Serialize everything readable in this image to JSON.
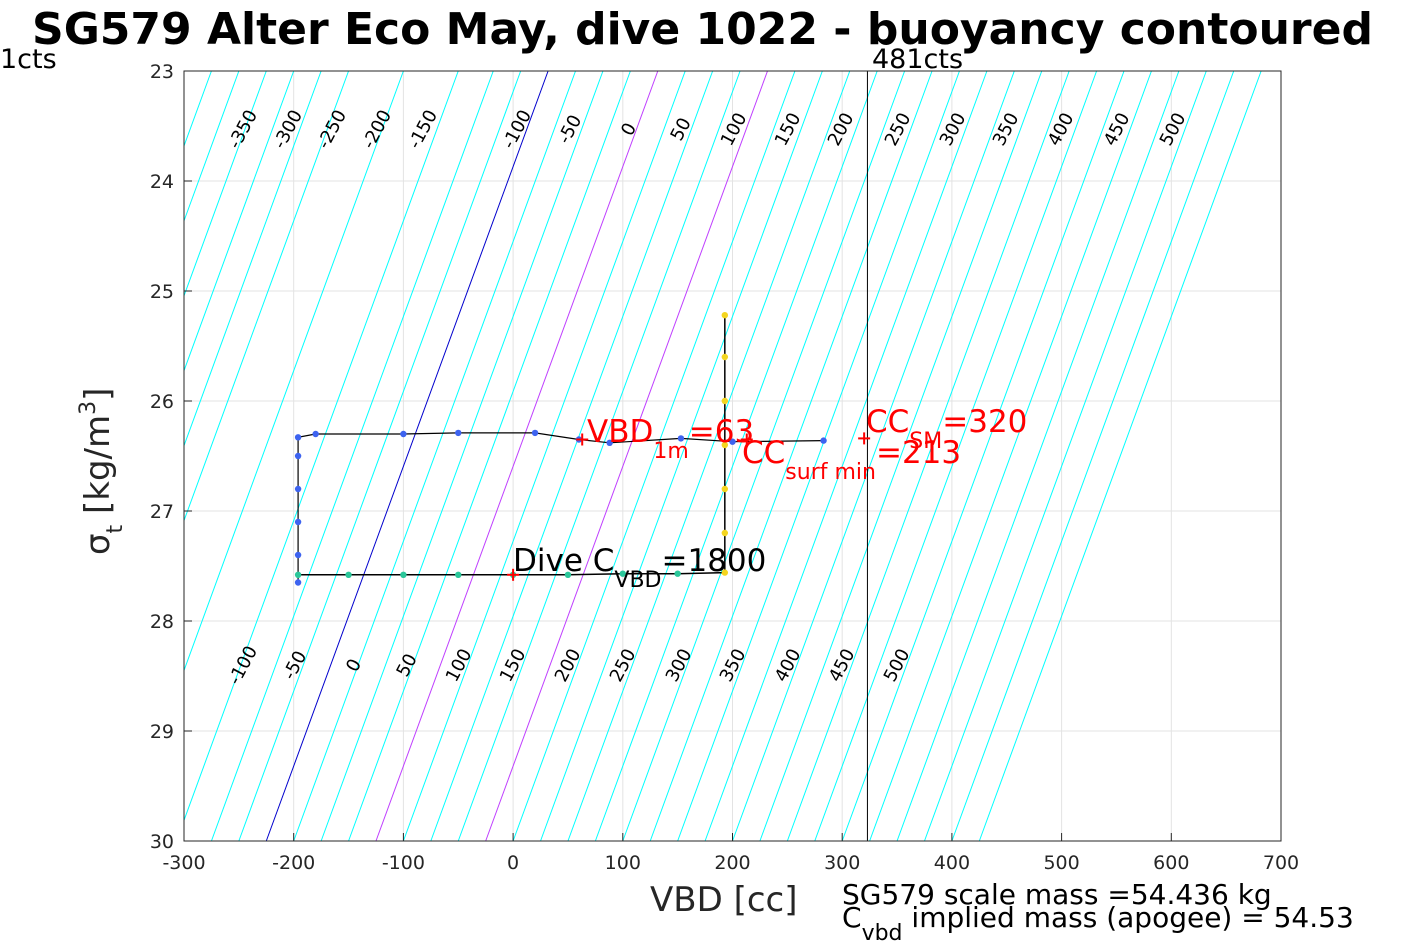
{
  "title": "SG579 Alter Eco May, dive 1022 - buoyancy contoured",
  "top_left_label": "1cts",
  "top_right_label": "481cts",
  "y_label_sigma": "σ",
  "y_label_sub": "t",
  "y_label_unit": " [kg/m",
  "y_label_sup": "3",
  "y_label_end": "]",
  "x_label": "VBD [cc]",
  "footer_line1": "SG579 scale mass =54.436 kg",
  "footer_line2_main": "C",
  "footer_line2_sub": "vbd",
  "footer_line2_rest": " implied mass (apogee) = 54.53",
  "annotations": {
    "vbd1m_main": "VBD",
    "vbd1m_sub": "1m",
    "vbd1m_val": "=63",
    "ccsurf_main": "CC",
    "ccsurf_sub": "surf min",
    "ccsurf_val": "=213",
    "ccsm_main": "CC",
    "ccsm_sub": "SM",
    "ccsm_val": "=320",
    "divec_main": "Dive C",
    "divec_sub": "VBD",
    "divec_val": "=1800"
  },
  "colors": {
    "contour": "#00ffff",
    "zero_contour": "#0000cd",
    "marked_contour": "#bf3fff",
    "marker": "#ff0000",
    "track": "#000000"
  },
  "chart_data": {
    "type": "scatter",
    "xlim": [
      -300,
      700
    ],
    "ylim": [
      23,
      30
    ],
    "y_reversed": true,
    "grid": true,
    "x_ticks": [
      -300,
      -200,
      -100,
      0,
      100,
      200,
      300,
      400,
      500,
      600,
      700
    ],
    "y_ticks": [
      23,
      24,
      25,
      26,
      27,
      28,
      29,
      30
    ],
    "contours": {
      "x_intercept_at_sigma30": [
        -275,
        -250,
        -225,
        -200,
        -175,
        -150,
        -125,
        -100,
        -75,
        -50,
        -25,
        0,
        25,
        50,
        75,
        100,
        125,
        150,
        175,
        200,
        225,
        250,
        275,
        300,
        325,
        350,
        375,
        400,
        425
      ],
      "x_intercept_at_sigma23": [
        -300,
        -275,
        -250,
        -225,
        -200,
        -175,
        -150,
        -100,
        -50,
        0,
        50,
        100,
        150,
        200,
        250,
        300,
        350,
        400,
        450,
        500,
        550,
        600,
        650,
        700
      ],
      "upper_labels": [
        "-350",
        "-300",
        "-250",
        "-200",
        "-150",
        "-100",
        "-50",
        "0",
        "50",
        "100",
        "150",
        "200",
        "250",
        "300",
        "350",
        "400",
        "450",
        "500"
      ],
      "lower_labels": [
        "-100",
        "-50",
        "0",
        "50",
        "100",
        "150",
        "200",
        "250",
        "300",
        "350",
        "400",
        "450",
        "500"
      ]
    },
    "dive_track": [
      {
        "x": 193,
        "y": 25.22
      },
      {
        "x": 193,
        "y": 25.6
      },
      {
        "x": 193,
        "y": 26.0
      },
      {
        "x": 193,
        "y": 26.4
      },
      {
        "x": 193,
        "y": 26.8
      },
      {
        "x": 193,
        "y": 27.2
      },
      {
        "x": 193,
        "y": 27.56
      },
      {
        "x": 150,
        "y": 27.57
      },
      {
        "x": 100,
        "y": 27.57
      },
      {
        "x": 50,
        "y": 27.58
      },
      {
        "x": 0,
        "y": 27.58
      },
      {
        "x": -50,
        "y": 27.58
      },
      {
        "x": -100,
        "y": 27.58
      },
      {
        "x": -150,
        "y": 27.58
      },
      {
        "x": -196,
        "y": 27.58
      }
    ],
    "climb_track": [
      {
        "x": -196,
        "y": 27.65
      },
      {
        "x": -196,
        "y": 27.4
      },
      {
        "x": -196,
        "y": 27.1
      },
      {
        "x": -196,
        "y": 26.8
      },
      {
        "x": -196,
        "y": 26.5
      },
      {
        "x": -196,
        "y": 26.33
      },
      {
        "x": -180,
        "y": 26.3
      },
      {
        "x": -100,
        "y": 26.3
      },
      {
        "x": -50,
        "y": 26.29
      },
      {
        "x": 20,
        "y": 26.29
      },
      {
        "x": 60,
        "y": 26.35
      },
      {
        "x": 88,
        "y": 26.38
      },
      {
        "x": 153,
        "y": 26.34
      },
      {
        "x": 200,
        "y": 26.37
      },
      {
        "x": 283,
        "y": 26.36
      }
    ],
    "vertical_line_x": 323,
    "markers": [
      {
        "label": "VBD1m",
        "x": 63,
        "y": 26.35
      },
      {
        "label": "CCsurfmin",
        "x": 213,
        "y": 26.35
      },
      {
        "label": "CCSM",
        "x": 320,
        "y": 26.34
      },
      {
        "label": "DiveCVBD",
        "x": 0,
        "y": 27.58
      }
    ]
  }
}
